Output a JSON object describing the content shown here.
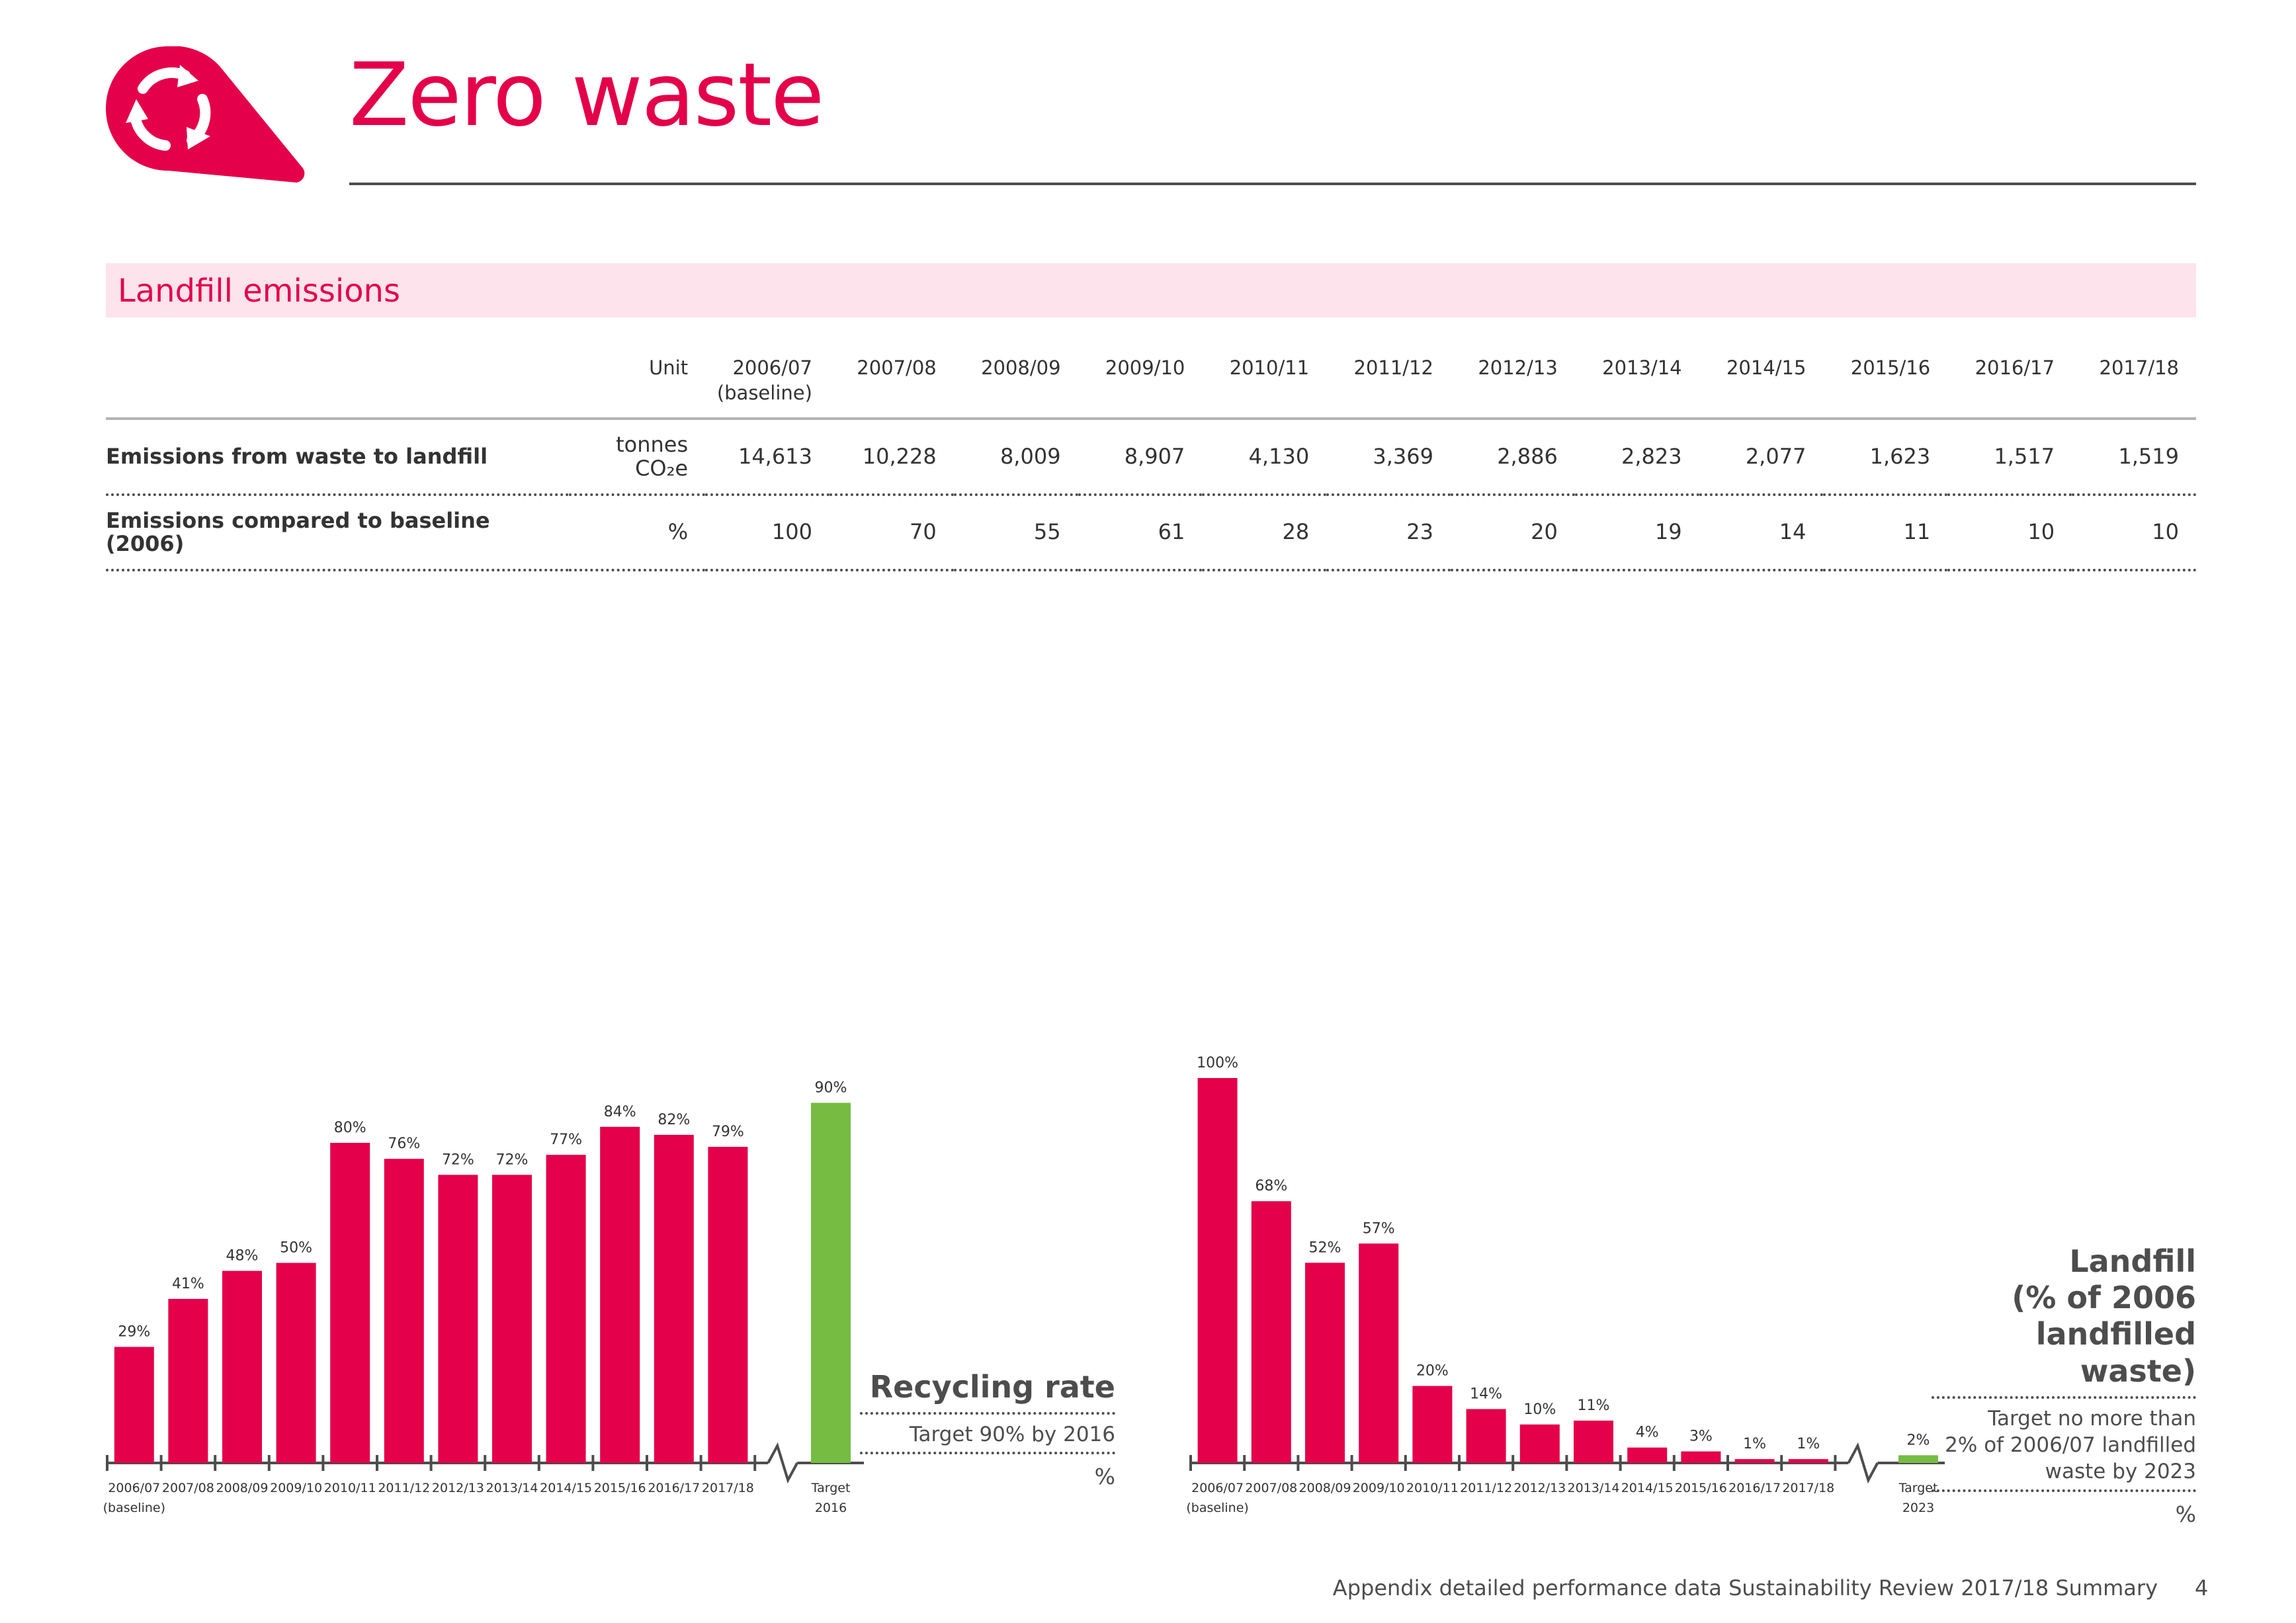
{
  "page": {
    "title": "Zero waste",
    "logo_icon": "recycle-arrows-icon",
    "accent_color": "#e4004a",
    "target_color": "#76bc43"
  },
  "section": {
    "title": "Landfill emissions"
  },
  "table": {
    "columns": [
      "Unit",
      "2006/07\n(baseline)",
      "2007/08",
      "2008/09",
      "2009/10",
      "2010/11",
      "2011/12",
      "2012/13",
      "2013/14",
      "2014/15",
      "2015/16",
      "2016/17",
      "2017/18"
    ],
    "rows": [
      {
        "label": "Emissions from waste to landfill",
        "unit": "tonnes CO₂e",
        "values": [
          "14,613",
          "10,228",
          "8,009",
          "8,907",
          "4,130",
          "3,369",
          "2,886",
          "2,823",
          "2,077",
          "1,623",
          "1,517",
          "1,519"
        ]
      },
      {
        "label": "Emissions compared to baseline (2006)",
        "unit": "%",
        "values": [
          "100",
          "70",
          "55",
          "61",
          "28",
          "23",
          "20",
          "19",
          "14",
          "11",
          "10",
          "10"
        ]
      }
    ]
  },
  "chart_data": [
    {
      "type": "bar",
      "title": "Recycling rate",
      "note": "Target 90% by 2016",
      "unit": "%",
      "categories": [
        "2006/07\n(baseline)",
        "2007/08",
        "2008/09",
        "2009/10",
        "2010/11",
        "2011/12",
        "2012/13",
        "2013/14",
        "2014/15",
        "2015/16",
        "2016/17",
        "2017/18"
      ],
      "values": [
        29,
        41,
        48,
        50,
        80,
        76,
        72,
        72,
        77,
        84,
        82,
        79
      ],
      "value_labels": [
        "29%",
        "41%",
        "48%",
        "50%",
        "80%",
        "76%",
        "72%",
        "72%",
        "77%",
        "84%",
        "82%",
        "79%"
      ],
      "target": {
        "category": "Target\n2016",
        "value": 90,
        "label": "90%"
      },
      "ylim": [
        0,
        100
      ],
      "axis_break": true,
      "grid": false
    },
    {
      "type": "bar",
      "title": "Landfill\n(% of 2006\nlandfilled waste)",
      "note": "Target no more than\n2% of 2006/07 landfilled\nwaste by 2023",
      "unit": "%",
      "categories": [
        "2006/07\n(baseline)",
        "2007/08",
        "2008/09",
        "2009/10",
        "2010/11",
        "2011/12",
        "2012/13",
        "2013/14",
        "2014/15",
        "2015/16",
        "2016/17",
        "2017/18"
      ],
      "values": [
        100,
        68,
        52,
        57,
        20,
        14,
        10,
        11,
        4,
        3,
        1,
        1
      ],
      "value_labels": [
        "100%",
        "68%",
        "52%",
        "57%",
        "20%",
        "14%",
        "10%",
        "11%",
        "4%",
        "3%",
        "1%",
        "1%"
      ],
      "target": {
        "category": "Target\n2023",
        "value": 2,
        "label": "2%"
      },
      "ylim": [
        0,
        100
      ],
      "axis_break": true,
      "grid": false
    }
  ],
  "footer": {
    "text": "Appendix detailed performance data Sustainability Review 2017/18 Summary",
    "page_number": "4"
  }
}
